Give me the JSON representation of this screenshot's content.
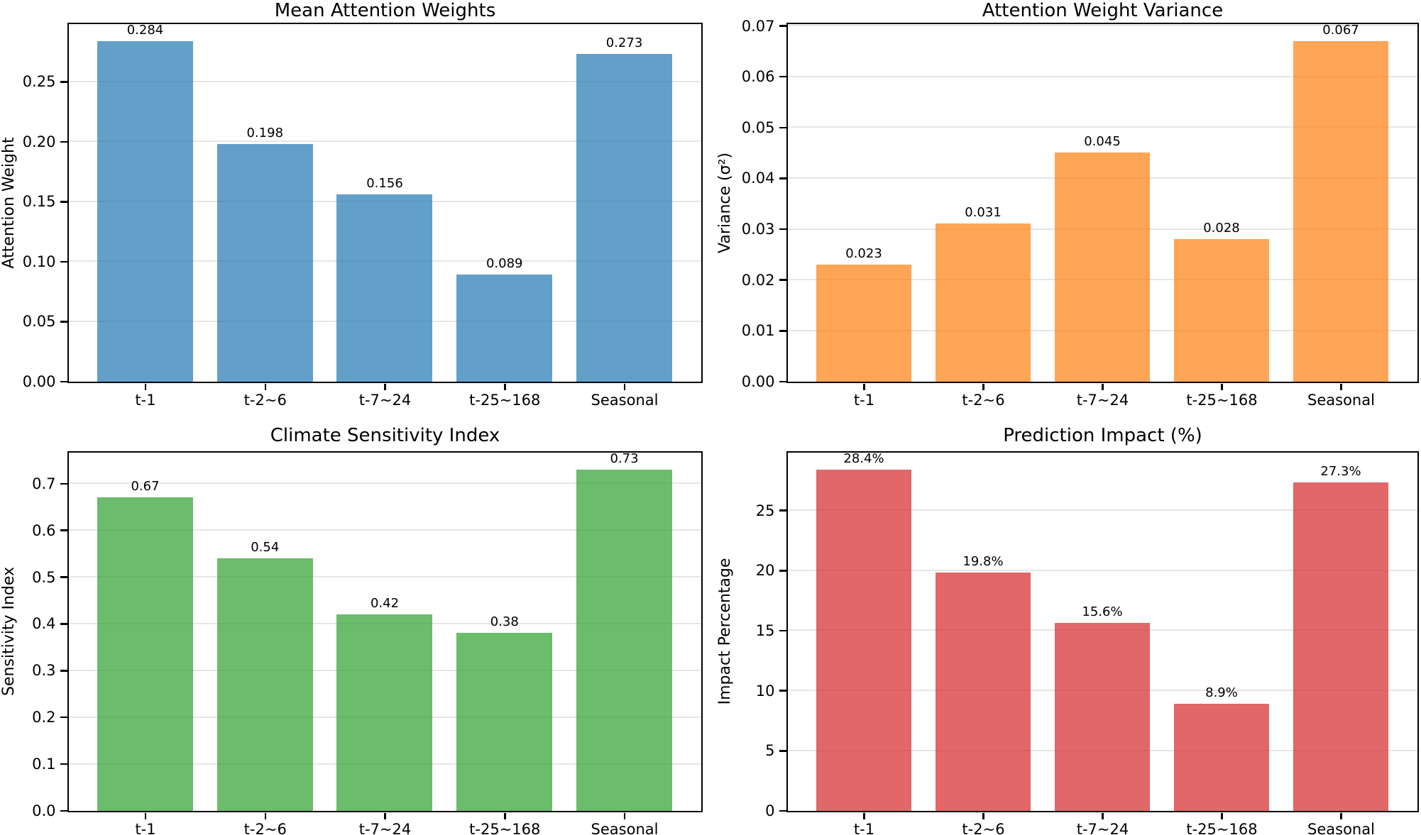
{
  "figure": {
    "background": "#ffffff",
    "grid_color": "#e6e6e6",
    "spine_color": "#000000",
    "text_color": "#000000"
  },
  "chart_data": [
    {
      "id": "mean-attention-weights",
      "type": "bar",
      "title": "Mean Attention Weights",
      "xlabel": "",
      "ylabel": "Attention Weight",
      "categories": [
        "t-1",
        "t-2~6",
        "t-7~24",
        "t-25~168",
        "Seasonal"
      ],
      "values": [
        0.284,
        0.198,
        0.156,
        0.089,
        0.273
      ],
      "bar_labels": [
        "0.284",
        "0.198",
        "0.156",
        "0.089",
        "0.273"
      ],
      "bar_color": "#1f77b4",
      "bar_color_rendered": "#62a0ca",
      "bar_alpha": 0.7,
      "ylim": [
        0,
        0.2982
      ],
      "yticks": [
        0,
        0.05,
        0.1,
        0.15,
        0.2,
        0.25
      ],
      "ytick_labels": [
        "0.00",
        "0.05",
        "0.10",
        "0.15",
        "0.20",
        "0.25"
      ],
      "grid": "horizontal",
      "legend": "none"
    },
    {
      "id": "attention-weight-variance",
      "type": "bar",
      "title": "Attention Weight Variance",
      "xlabel": "",
      "ylabel": "Variance (σ²)",
      "categories": [
        "t-1",
        "t-2~6",
        "t-7~24",
        "t-25~168",
        "Seasonal"
      ],
      "values": [
        0.023,
        0.031,
        0.045,
        0.028,
        0.067
      ],
      "bar_labels": [
        "0.023",
        "0.031",
        "0.045",
        "0.028",
        "0.067"
      ],
      "bar_color": "#ff7f0e",
      "bar_color_rendered": "#ffa556",
      "bar_alpha": 0.7,
      "ylim": [
        0,
        0.07035
      ],
      "yticks": [
        0,
        0.01,
        0.02,
        0.03,
        0.04,
        0.05,
        0.06,
        0.07
      ],
      "ytick_labels": [
        "0.00",
        "0.01",
        "0.02",
        "0.03",
        "0.04",
        "0.05",
        "0.06",
        "0.07"
      ],
      "grid": "horizontal",
      "legend": "none"
    },
    {
      "id": "climate-sensitivity-index",
      "type": "bar",
      "title": "Climate Sensitivity Index",
      "xlabel": "",
      "ylabel": "Sensitivity Index",
      "categories": [
        "t-1",
        "t-2~6",
        "t-7~24",
        "t-25~168",
        "Seasonal"
      ],
      "values": [
        0.67,
        0.54,
        0.42,
        0.38,
        0.73
      ],
      "bar_labels": [
        "0.67",
        "0.54",
        "0.42",
        "0.38",
        "0.73"
      ],
      "bar_color": "#2ca02c",
      "bar_color_rendered": "#6bbc6b",
      "bar_alpha": 0.7,
      "ylim": [
        0,
        0.7665
      ],
      "yticks": [
        0,
        0.1,
        0.2,
        0.3,
        0.4,
        0.5,
        0.6,
        0.7
      ],
      "ytick_labels": [
        "0.0",
        "0.1",
        "0.2",
        "0.3",
        "0.4",
        "0.5",
        "0.6",
        "0.7"
      ],
      "grid": "horizontal",
      "legend": "none"
    },
    {
      "id": "prediction-impact",
      "type": "bar",
      "title": "Prediction Impact (%)",
      "xlabel": "",
      "ylabel": "Impact Percentage",
      "categories": [
        "t-1",
        "t-2~6",
        "t-7~24",
        "t-25~168",
        "Seasonal"
      ],
      "values": [
        28.4,
        19.8,
        15.6,
        8.9,
        27.3
      ],
      "bar_labels": [
        "28.4%",
        "19.8%",
        "15.6%",
        "8.9%",
        "27.3%"
      ],
      "bar_color": "#d62728",
      "bar_color_rendered": "#e26868",
      "bar_alpha": 0.7,
      "ylim": [
        0,
        29.82
      ],
      "yticks": [
        0,
        5,
        10,
        15,
        20,
        25
      ],
      "ytick_labels": [
        "0",
        "5",
        "10",
        "15",
        "20",
        "25"
      ],
      "grid": "horizontal",
      "legend": "none"
    }
  ]
}
